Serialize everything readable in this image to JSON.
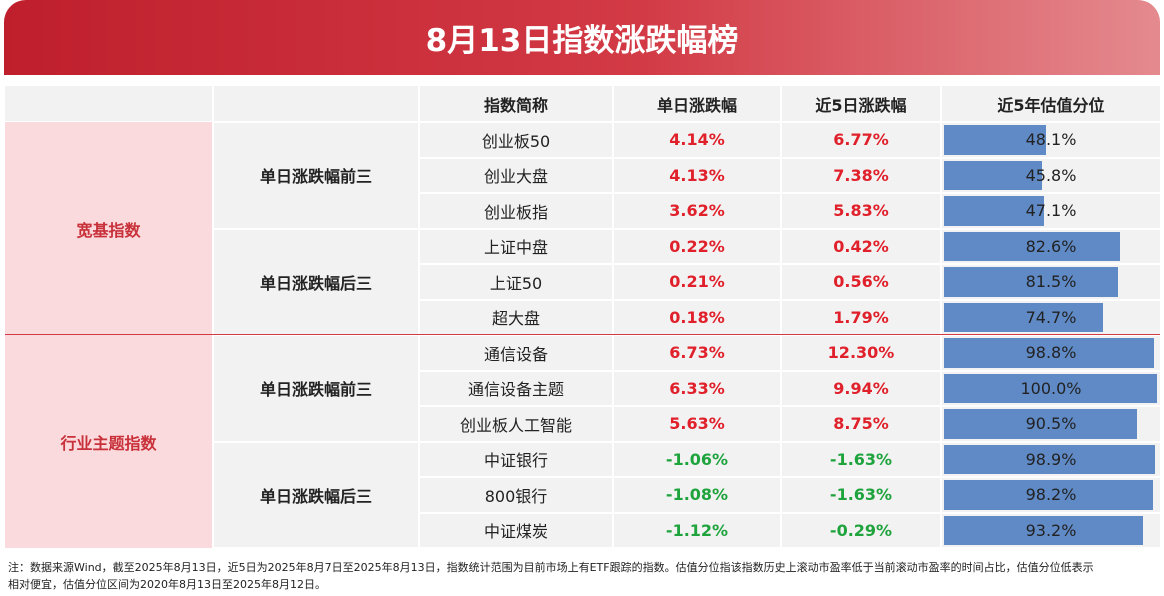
{
  "title": "8月13日指数涨跌幅榜",
  "table": {
    "header": [
      "指数简称",
      "单日涨跌幅",
      "近5日涨跌幅",
      "近5年估值分位"
    ],
    "groups": [
      {
        "name": "宽基指数",
        "subgroups": [
          {
            "name": "单日涨跌幅前三",
            "rows": [
              {
                "name": "创业板50",
                "day": "4.14%",
                "week": "6.77%",
                "pct": {
                  "value": 48.1,
                  "label": "48.1%"
                }
              },
              {
                "name": "创业大盘",
                "day": "4.13%",
                "week": "7.38%",
                "pct": {
                  "value": 45.8,
                  "label": "45.8%"
                }
              },
              {
                "name": "创业板指",
                "day": "3.62%",
                "week": "5.83%",
                "pct": {
                  "value": 47.1,
                  "label": "47.1%"
                }
              }
            ]
          },
          {
            "name": "单日涨跌幅后三",
            "rows": [
              {
                "name": "上证中盘",
                "day": "0.22%",
                "week": "0.42%",
                "pct": {
                  "value": 82.6,
                  "label": "82.6%"
                }
              },
              {
                "name": "上证50",
                "day": "0.21%",
                "week": "0.56%",
                "pct": {
                  "value": 81.5,
                  "label": "81.5%"
                }
              },
              {
                "name": "超大盘",
                "day": "0.18%",
                "week": "1.79%",
                "pct": {
                  "value": 74.7,
                  "label": "74.7%"
                }
              }
            ]
          }
        ]
      },
      {
        "name": "行业主题指数",
        "subgroups": [
          {
            "name": "单日涨跌幅前三",
            "rows": [
              {
                "name": "通信设备",
                "day": "6.73%",
                "week": "12.30%",
                "pct": {
                  "value": 98.8,
                  "label": "98.8%"
                }
              },
              {
                "name": "通信设备主题",
                "day": "6.33%",
                "week": "9.94%",
                "pct": {
                  "value": 100.0,
                  "label": "100.0%"
                }
              },
              {
                "name": "创业板人工智能",
                "day": "5.63%",
                "week": "8.75%",
                "pct": {
                  "value": 90.5,
                  "label": "90.5%"
                }
              }
            ]
          },
          {
            "name": "单日涨跌幅后三",
            "rows": [
              {
                "name": "中证银行",
                "day": "-1.06%",
                "week": "-1.63%",
                "pct": {
                  "value": 98.9,
                  "label": "98.9%"
                }
              },
              {
                "name": "800银行",
                "day": "-1.08%",
                "week": "-1.63%",
                "pct": {
                  "value": 98.2,
                  "label": "98.2%"
                }
              },
              {
                "name": "中证煤炭",
                "day": "-1.12%",
                "week": "-0.29%",
                "pct": {
                  "value": 93.2,
                  "label": "93.2%"
                }
              }
            ]
          }
        ]
      }
    ]
  },
  "note": [
    "注：数据来源Wind，截至2025年8月13日，近5日为2025年8月7日至2025年8月13日，指数统计范围为目前市场上有ETF跟踪的指数。估值分位指该指数历史上滚动市盈率低于当前滚动市盈率的时间占比，估值分位低表示",
    "相对便宜，估值分位区间为2020年8月13日至2025年8月12日。"
  ]
}
